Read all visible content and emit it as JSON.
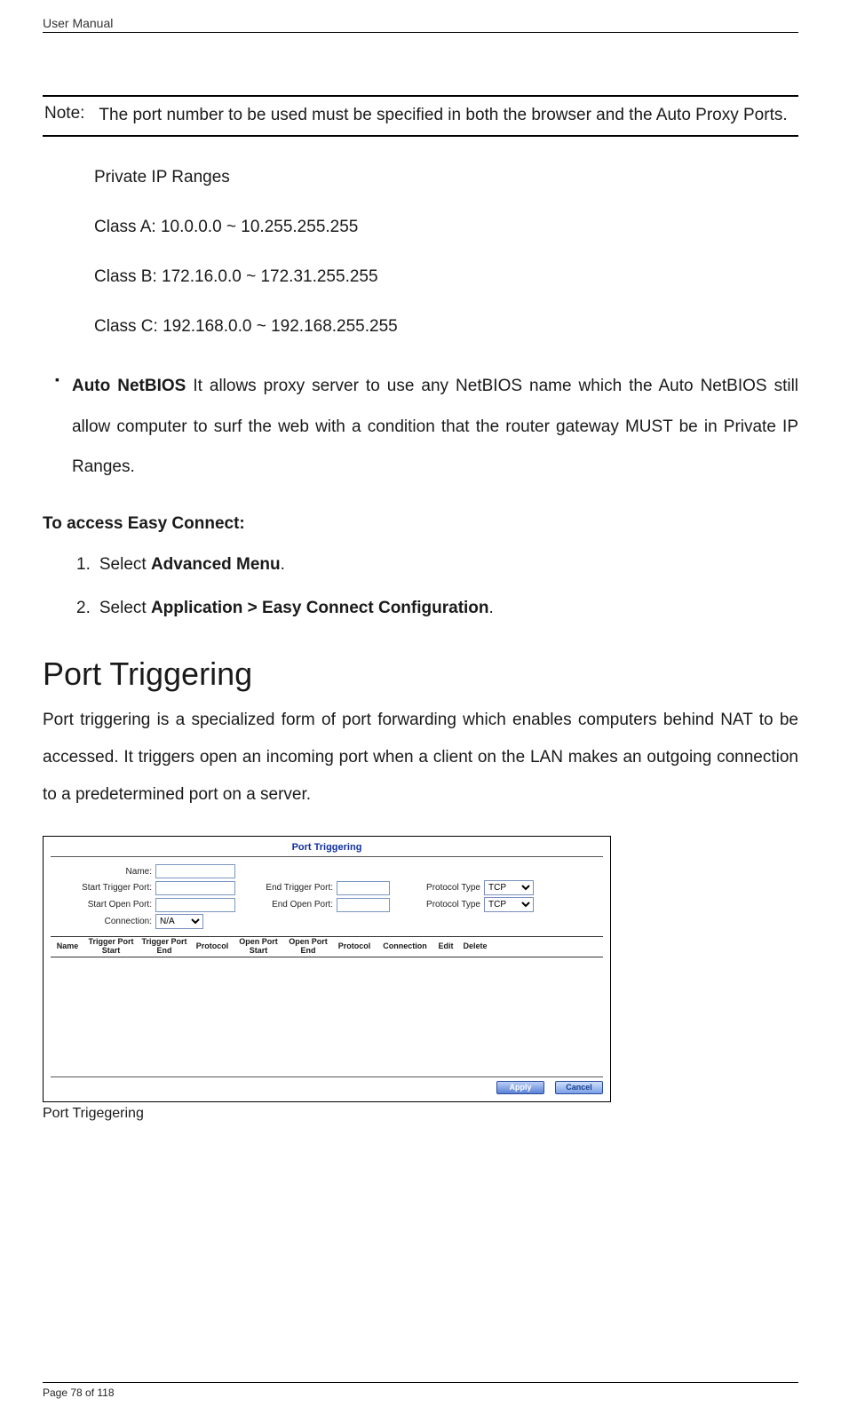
{
  "header": {
    "running_title": "User Manual"
  },
  "note": {
    "label": "Note:",
    "text": "The port number to be used must be specified in both the browser and the Auto Proxy Ports."
  },
  "private_ranges": {
    "title": "Private IP Ranges",
    "class_a": "Class A: 10.0.0.0 ~ 10.255.255.255",
    "class_b": "Class B: 172.16.0.0 ~ 172.31.255.255",
    "class_c": "Class C: 192.168.0.0 ~ 192.168.255.255"
  },
  "bullet": {
    "lead": "Auto NetBIOS",
    "rest": " It allows proxy server to use any NetBIOS name which the Auto NetBIOS still allow computer to surf the web with a condition that the router gateway MUST be in Private IP Ranges."
  },
  "section": {
    "access_heading": "To access Easy Connect:",
    "step1_num": "1.",
    "step1_pre": "Select ",
    "step1_bold": "Advanced Menu",
    "step1_post": ".",
    "step2_num": "2.",
    "step2_pre": "Select ",
    "step2_bold": "Application > Easy Connect Configuration",
    "step2_post": "."
  },
  "triggering": {
    "heading": "Port Triggering",
    "intro": "Port triggering is a specialized form of port forwarding which enables computers behind NAT to be accessed. It triggers open an incoming port when a client on the LAN makes an outgoing connection to a predetermined port on a server."
  },
  "panel": {
    "title": "Port Triggering",
    "labels": {
      "name": "Name:",
      "start_trigger": "Start Trigger Port:",
      "end_trigger": "End Trigger Port:",
      "proto_type": "Protocol Type",
      "start_open": "Start Open Port:",
      "end_open": "End Open Port:",
      "connection": "Connection:"
    },
    "values": {
      "name": "",
      "start_trigger": "",
      "end_trigger": "",
      "start_open": "",
      "end_open": ""
    },
    "protocol_option": "TCP",
    "connection_option": "N/A",
    "columns": {
      "c0": "Name",
      "c1": "Trigger Port Start",
      "c2": "Trigger Port End",
      "c3": "Protocol",
      "c4": "Open Port Start",
      "c5": "Open Port End",
      "c6": "Protocol",
      "c7": "Connection",
      "c8": "Edit",
      "c9": "Delete"
    },
    "buttons": {
      "apply": "Apply",
      "cancel": "Cancel"
    },
    "caption": "Port Trigegering"
  },
  "footer": {
    "page_number": "Page 78 of 118"
  },
  "style": {
    "note_rule_color": "#000000",
    "link_blue": "#1030a0",
    "button_gradient_top": "#bcd0f5",
    "button_gradient_bottom": "#5a82d8",
    "input_border": "#7a97c2",
    "text_color": "#1a1a1a",
    "body_fontsize_pt": 14,
    "heading_fontsize_pt": 27
  }
}
